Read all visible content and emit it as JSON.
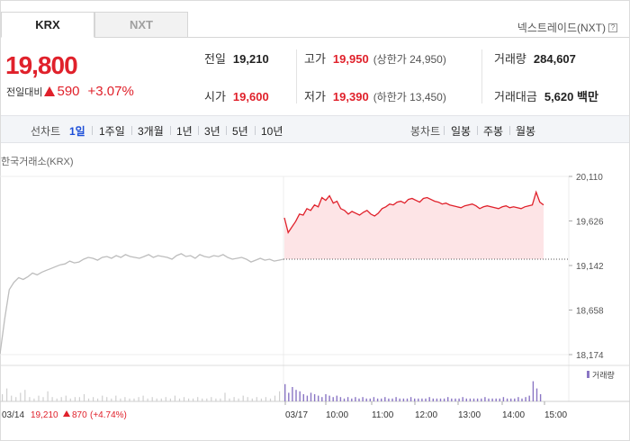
{
  "tabs": [
    {
      "label": "KRX",
      "active": true
    },
    {
      "label": "NXT",
      "active": false
    }
  ],
  "nxt_label": "넥스트레이드(NXT)",
  "help_icon": "?",
  "price": {
    "current": "19,800",
    "change_label": "전일대비",
    "change_value": "590",
    "change_pct": "+3.07%",
    "direction": "up"
  },
  "stats": {
    "prev_close_label": "전일",
    "prev_close": "19,210",
    "open_label": "시가",
    "open": "19,600",
    "high_label": "고가",
    "high": "19,950",
    "upper_limit": "(상한가 24,950)",
    "low_label": "저가",
    "low": "19,390",
    "lower_limit": "(하한가 13,450)",
    "volume_label": "거래량",
    "volume": "284,607",
    "amount_label": "거래대금",
    "amount": "5,620 백만"
  },
  "period_bar": {
    "line_label": "선차트",
    "line_periods": [
      "1일",
      "1주일",
      "3개월",
      "1년",
      "3년",
      "5년",
      "10년"
    ],
    "active": "1일",
    "candle_label": "봉차트",
    "candle_periods": [
      "일봉",
      "주봉",
      "월봉"
    ]
  },
  "source_label": "한국거래소(KRX)",
  "colors": {
    "up": "#e0212b",
    "down": "#1d4fd8",
    "prev_line": "#bdbdbd",
    "volume": "#8a76c4"
  },
  "chart_data": {
    "type": "line",
    "y_ticks": [
      "20,110",
      "19,626",
      "19,142",
      "18,658",
      "18,174"
    ],
    "ylim": [
      18174,
      20110
    ],
    "x_labels": [
      "03/14",
      "03/17",
      "10:00",
      "11:00",
      "12:00",
      "13:00",
      "14:00",
      "15:00"
    ],
    "prev_day_summary": {
      "date": "03/14",
      "close": "19,210",
      "change": "870",
      "change_pct": "(+4.74%)"
    },
    "prev_close_ref": 19210,
    "volume_legend": "거래량",
    "prev_day_series": [
      18180,
      18560,
      18880,
      18960,
      19010,
      18990,
      19020,
      19060,
      19040,
      19070,
      19090,
      19110,
      19130,
      19150,
      19160,
      19190,
      19170,
      19180,
      19210,
      19230,
      19220,
      19200,
      19230,
      19240,
      19220,
      19250,
      19230,
      19260,
      19240,
      19230,
      19220,
      19240,
      19260,
      19230,
      19250,
      19240,
      19230,
      19210,
      19250,
      19270,
      19240,
      19250,
      19220,
      19260,
      19240,
      19230,
      19250,
      19240,
      19260,
      19230,
      19210,
      19220,
      19230,
      19210,
      19180,
      19200,
      19220,
      19200,
      19210,
      19190,
      19200,
      19210
    ],
    "today_series": [
      19660,
      19500,
      19560,
      19620,
      19700,
      19690,
      19760,
      19740,
      19800,
      19780,
      19880,
      19850,
      19900,
      19820,
      19840,
      19760,
      19740,
      19700,
      19730,
      19710,
      19690,
      19720,
      19740,
      19700,
      19680,
      19710,
      19760,
      19780,
      19810,
      19800,
      19830,
      19840,
      19820,
      19860,
      19870,
      19850,
      19830,
      19870,
      19880,
      19860,
      19840,
      19830,
      19810,
      19820,
      19800,
      19790,
      19780,
      19770,
      19790,
      19800,
      19810,
      19790,
      19760,
      19780,
      19790,
      19780,
      19770,
      19760,
      19780,
      19790,
      19770,
      19780,
      19770,
      19760,
      19780,
      19790,
      19800,
      19940,
      19830,
      19800
    ],
    "prev_volume": [
      5,
      9,
      4,
      3,
      6,
      8,
      3,
      2,
      4,
      3,
      7,
      3,
      2,
      3,
      4,
      2,
      3,
      3,
      5,
      2,
      3,
      2,
      4,
      3,
      2,
      4,
      2,
      3,
      2,
      2,
      3,
      4,
      2,
      3,
      2,
      2,
      3,
      2,
      4,
      2,
      3,
      2,
      2,
      3,
      2,
      2,
      3,
      2,
      2,
      6,
      2,
      3,
      2,
      4,
      3,
      2,
      3,
      2,
      3,
      2,
      4,
      7
    ],
    "today_volume": [
      12,
      6,
      10,
      8,
      7,
      5,
      4,
      6,
      5,
      4,
      3,
      5,
      4,
      3,
      4,
      3,
      2,
      3,
      2,
      3,
      2,
      3,
      2,
      2,
      3,
      2,
      2,
      3,
      2,
      2,
      3,
      2,
      2,
      2,
      3,
      2,
      2,
      2,
      2,
      3,
      2,
      2,
      2,
      2,
      3,
      2,
      2,
      2,
      3,
      2,
      2,
      2,
      2,
      2,
      3,
      2,
      2,
      2,
      2,
      3,
      2,
      2,
      2,
      3,
      2,
      3,
      4,
      14,
      9,
      5
    ]
  }
}
